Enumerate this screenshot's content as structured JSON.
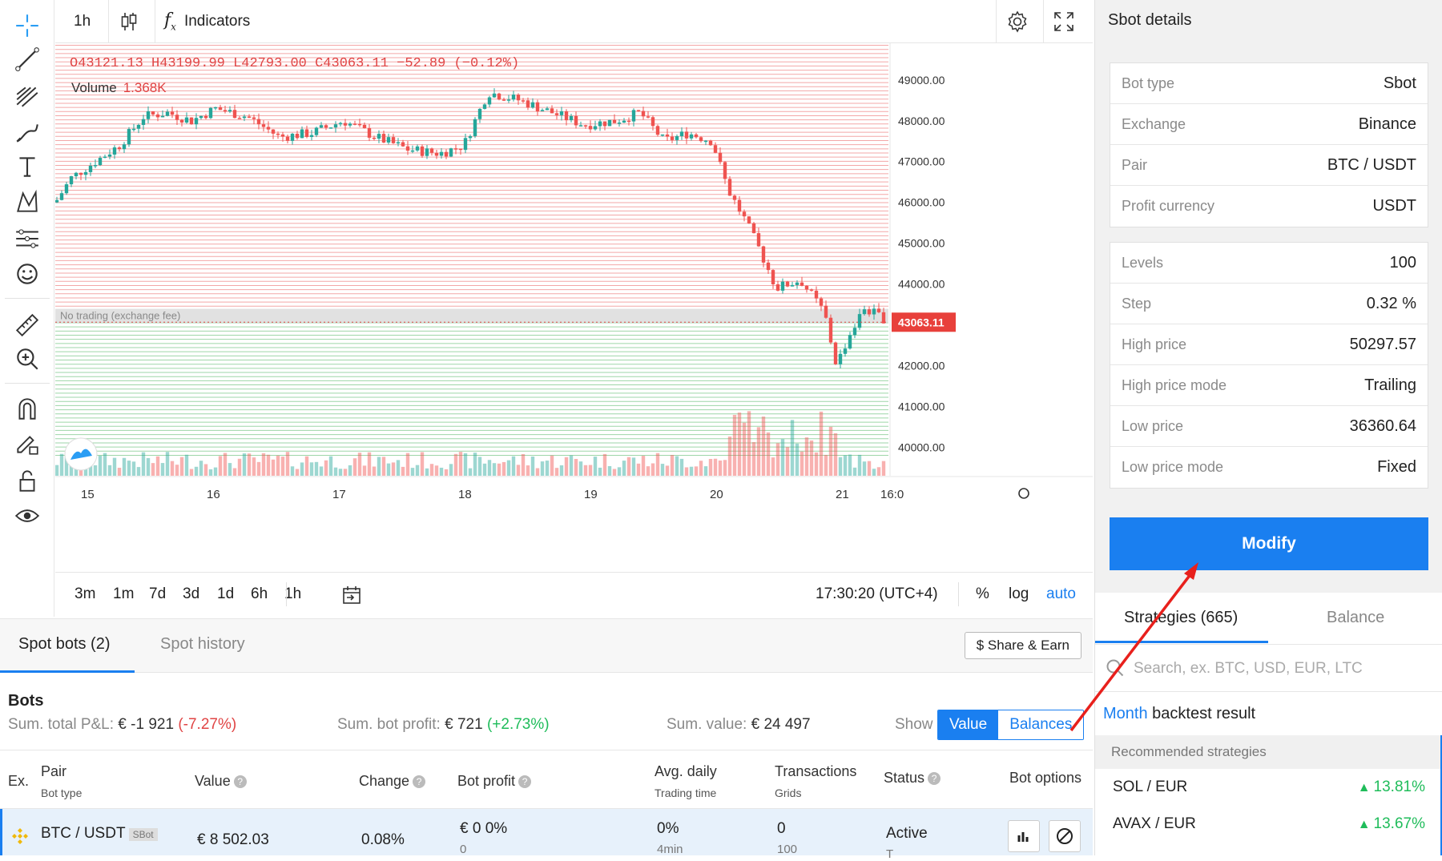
{
  "toolbar": {
    "tools": [
      "crosshair-icon",
      "trend-line-icon",
      "fib-icon",
      "brush-icon",
      "text-icon",
      "pattern-icon",
      "measure-lines-icon",
      "emoji-icon",
      "ruler-icon",
      "zoom-in-icon",
      "magnet-icon",
      "lock-drawing-icon",
      "unlock-icon",
      "eye-icon"
    ]
  },
  "topbar": {
    "interval": "1h",
    "indicators_label": "Indicators"
  },
  "ohlc": {
    "o_key": "O",
    "o": "43121.13",
    "h_key": "H",
    "h": "43199.99",
    "l_key": "L",
    "l": "42793.00",
    "c_key": "C",
    "c": "43063.11",
    "change": "−52.89 (−0.12%)"
  },
  "volume": {
    "label": "Volume",
    "value": "1.368K"
  },
  "chart_data": {
    "type": "candlestick",
    "y_ticks": [
      "49000.00",
      "48000.00",
      "47000.00",
      "46000.00",
      "45000.00",
      "44000.00",
      "42000.00",
      "41000.00",
      "40000.00"
    ],
    "ylim": [
      39300,
      49900
    ],
    "x_ticks": [
      "15",
      "16",
      "17",
      "18",
      "19",
      "20",
      "21",
      "16:0"
    ],
    "last_price": "43063.11",
    "no_trading_label": "No trading (exchange fee)",
    "no_trading_band": [
      43050,
      43390
    ],
    "colors": {
      "up": "#26a69a",
      "down": "#ef5350",
      "sell_grid": "#f3a7a7",
      "buy_grid": "#9ed6a8"
    }
  },
  "timeframes": [
    "3m",
    "1m",
    "7d",
    "3d",
    "1d",
    "6h",
    "1h"
  ],
  "clock": "17:30:20 (UTC+4)",
  "scale_opts": {
    "percent": "%",
    "log": "log",
    "auto": "auto"
  },
  "bottom_tabs": {
    "spot_bots": "Spot bots (2)",
    "spot_history": "Spot history",
    "share": "$ Share & Earn"
  },
  "bots": {
    "title": "Bots",
    "pnl_label": "Sum. total P&L:",
    "pnl_value": "€ -1 921",
    "pnl_pct": "(-7.27%)",
    "profit_label": "Sum. bot profit:",
    "profit_value": "€ 721",
    "profit_pct": "(+2.73%)",
    "value_label": "Sum. value:",
    "value_value": "€ 24 497",
    "show_label": "Show",
    "seg_value": "Value",
    "seg_balances": "Balances"
  },
  "table": {
    "headers": {
      "ex": "Ex.",
      "pair": "Pair",
      "pair_sub": "Bot type",
      "value": "Value",
      "change": "Change",
      "bot_profit": "Bot profit",
      "avg": "Avg. daily",
      "avg_sub": "Trading time",
      "tx": "Transactions",
      "tx_sub": "Grids",
      "status": "Status",
      "options": "Bot options"
    },
    "rows": [
      {
        "pair": "BTC / USDT",
        "type": "SBot",
        "value": "€ 8 502.03",
        "change": "0.08%",
        "profit": "€ 0 0%",
        "profit_sub": "0",
        "avg": "0%",
        "avg_sub": "4min",
        "tx": "0",
        "tx_sub": "100",
        "status": "Active",
        "status_sub": "T"
      }
    ]
  },
  "details": {
    "title": "Sbot details",
    "group1": [
      {
        "label": "Bot type",
        "value": "Sbot"
      },
      {
        "label": "Exchange",
        "value": "Binance"
      },
      {
        "label": "Pair",
        "value": "BTC / USDT"
      },
      {
        "label": "Profit currency",
        "value": "USDT"
      }
    ],
    "group2": [
      {
        "label": "Levels",
        "value": "100"
      },
      {
        "label": "Step",
        "value": "0.32 %"
      },
      {
        "label": "High price",
        "value": "50297.57"
      },
      {
        "label": "High price mode",
        "value": "Trailing"
      },
      {
        "label": "Low price",
        "value": "36360.64"
      },
      {
        "label": "Low price mode",
        "value": "Fixed"
      }
    ],
    "modify": "Modify"
  },
  "strategies": {
    "tab1": "Strategies (665)",
    "tab2": "Balance",
    "search_placeholder": "Search, ex. BTC, USD, EUR, LTC",
    "backtest_period": "Month",
    "backtest_rest": "backtest result",
    "recommended": "Recommended strategies",
    "items": [
      {
        "pair": "SOL / EUR",
        "pct": "13.81%"
      },
      {
        "pair": "AVAX / EUR",
        "pct": "13.67%"
      }
    ]
  }
}
